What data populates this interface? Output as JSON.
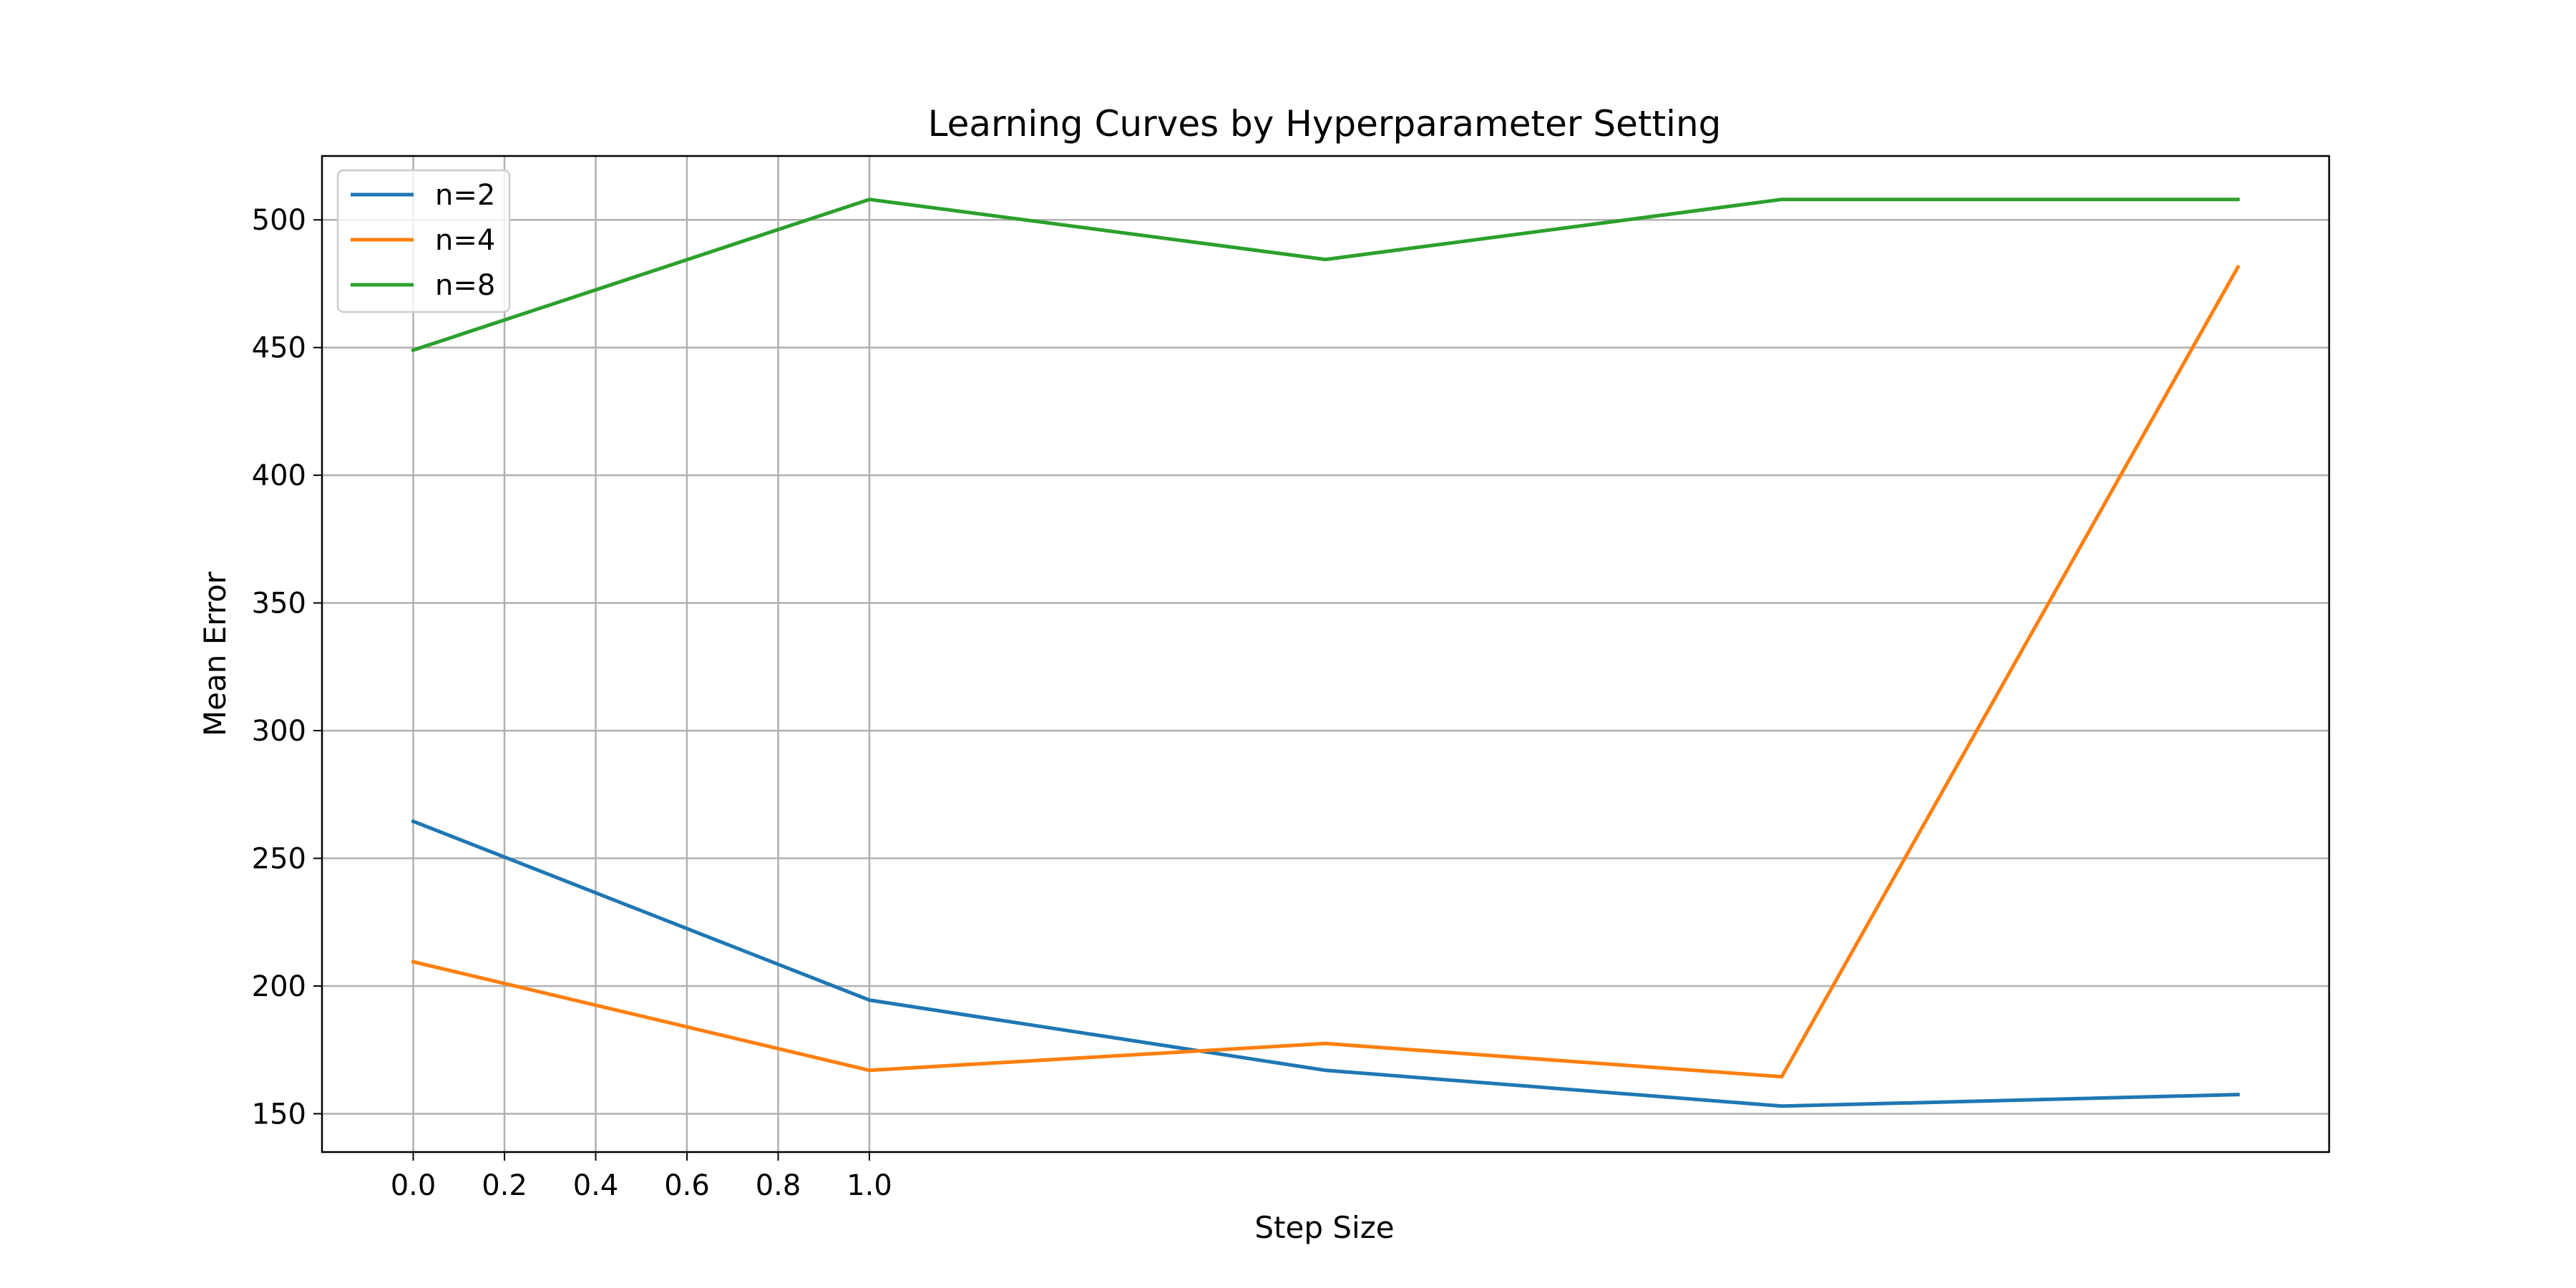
{
  "chart_data": {
    "type": "line",
    "title": "Learning Curves by Hyperparameter Setting",
    "xlabel": "Step Size",
    "ylabel": "Mean Error",
    "x": [
      0.0,
      1.0,
      2.0,
      3.0,
      4.0
    ],
    "xticks": [
      0.0,
      0.2,
      0.4,
      0.6,
      0.8,
      1.0
    ],
    "xtick_labels": [
      "0.0",
      "0.2",
      "0.4",
      "0.6",
      "0.8",
      "1.0"
    ],
    "xlim": [
      -0.2,
      4.2
    ],
    "yticks": [
      150,
      200,
      250,
      300,
      350,
      400,
      450,
      500
    ],
    "ytick_labels": [
      "150",
      "200",
      "250",
      "300",
      "350",
      "400",
      "450",
      "500"
    ],
    "ylim": [
      135,
      525
    ],
    "grid": true,
    "legend_position": "upper-left",
    "series": [
      {
        "name": "n=2",
        "color": "#1f77b4",
        "values": [
          264.5,
          194.5,
          167.0,
          153.0,
          157.5
        ]
      },
      {
        "name": "n=4",
        "color": "#ff7f0e",
        "values": [
          209.5,
          167.0,
          177.5,
          164.5,
          481.5
        ]
      },
      {
        "name": "n=8",
        "color": "#2ca02c",
        "values": [
          449.0,
          508.0,
          484.5,
          508.0,
          508.0
        ]
      }
    ]
  }
}
